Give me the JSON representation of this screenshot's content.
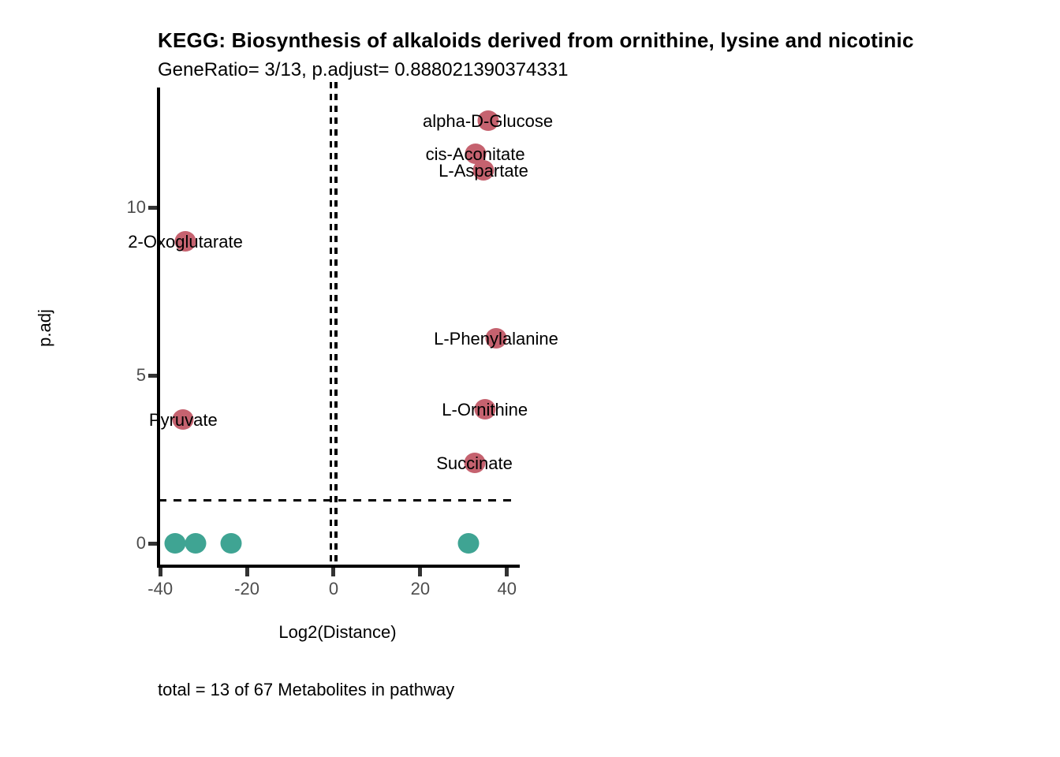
{
  "chart_data": {
    "type": "scatter",
    "title": "KEGG: Biosynthesis of alkaloids derived from ornithine, lysine and nicotinic",
    "subtitle": "GeneRatio= 3/13, p.adjust= 0.888021390374331",
    "xlabel": "Log2(Distance)",
    "ylabel": "p.adj",
    "caption": "total = 13 of 67 Metabolites in pathway",
    "xlim": [
      -40.4,
      42.6
    ],
    "ylim": [
      -0.7,
      13.74
    ],
    "x_ticks": [
      -40,
      -20,
      0,
      20,
      40
    ],
    "y_ticks": [
      0,
      5,
      10
    ],
    "grid": false,
    "legend": "none",
    "threshold_hline_y": 1.28,
    "threshold_vlines_x": [
      -0.585,
      0.585
    ],
    "colors": {
      "significant": "#C5626F",
      "not_significant": "#3FA493",
      "axis_text": "#4d4d4d",
      "threshold_line": "#000000"
    },
    "series": [
      {
        "name": "significant-metabolites",
        "color": "#C5626F",
        "labeled": true,
        "points": [
          {
            "label": "alpha-D-Glucose",
            "x": 35.6,
            "y": 12.6
          },
          {
            "label": "cis-Aconitate",
            "x": 32.7,
            "y": 11.6
          },
          {
            "label": "L-Aspartate",
            "x": 34.6,
            "y": 11.1
          },
          {
            "label": "2-Oxoglutarate",
            "x": -34.2,
            "y": 9.0
          },
          {
            "label": "L-Phenylalanine",
            "x": 37.5,
            "y": 6.1
          },
          {
            "label": "L-Ornithine",
            "x": 34.9,
            "y": 4.0
          },
          {
            "label": "Pyruvate",
            "x": -34.7,
            "y": 3.7
          },
          {
            "label": "Succinate",
            "x": 32.5,
            "y": 2.4
          }
        ]
      },
      {
        "name": "non-significant-metabolites",
        "color": "#3FA493",
        "labeled": false,
        "points": [
          {
            "label": "",
            "x": -36.6,
            "y": 0
          },
          {
            "label": "",
            "x": -31.8,
            "y": 0
          },
          {
            "label": "",
            "x": -23.6,
            "y": 0
          },
          {
            "label": "",
            "x": 31.1,
            "y": 0
          }
        ]
      }
    ]
  }
}
